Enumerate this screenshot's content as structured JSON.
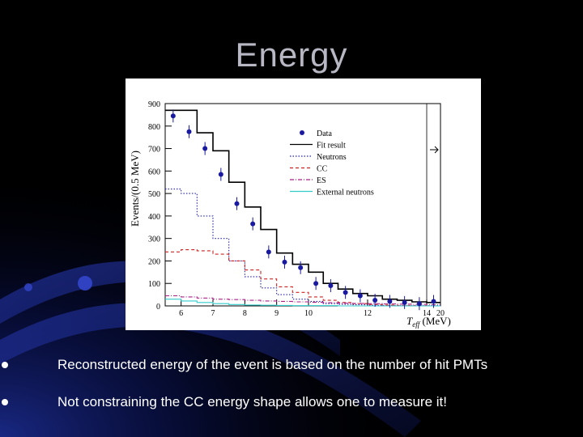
{
  "slide": {
    "title": "Energy",
    "bullets": [
      "Reconstructed energy of the event is based on the number of hit PMTs",
      "Not constraining the CC energy shape allows one to measure it!"
    ]
  },
  "chart_data": {
    "type": "line",
    "ylabel": "Events/(0.5 MeV)",
    "xlabel": "T_eff (MeV)",
    "xlim": [
      5.5,
      20
    ],
    "ylim": [
      0,
      900
    ],
    "x_ticks": [
      {
        "v": 6,
        "label": "6"
      },
      {
        "v": 7,
        "label": "7"
      },
      {
        "v": 8,
        "label": "8"
      },
      {
        "v": 9,
        "label": "9"
      },
      {
        "v": 10,
        "label": "10"
      },
      {
        "v": 12,
        "label": "12"
      },
      {
        "v": 14,
        "label": "14"
      },
      {
        "v": 20,
        "label": "20"
      }
    ],
    "y_ticks": [
      0,
      100,
      200,
      300,
      400,
      500,
      600,
      700,
      800,
      900
    ],
    "y_tick_labels": [
      "0",
      "100",
      "200",
      "300",
      "400",
      "500",
      "600",
      "700",
      "800",
      "900"
    ],
    "bin_edges": [
      5.5,
      6,
      6.5,
      7,
      7.5,
      8,
      8.5,
      9,
      9.5,
      10,
      10.5,
      11,
      11.5,
      12,
      12.5,
      13,
      13.5,
      14,
      20
    ],
    "data_points": {
      "name": "Data",
      "x": [
        5.75,
        6.25,
        6.75,
        7.25,
        7.75,
        8.25,
        8.75,
        9.25,
        9.75,
        10.25,
        10.75,
        11.25,
        11.75,
        12.25,
        12.75,
        13.25,
        13.75,
        17
      ],
      "y": [
        845,
        775,
        700,
        585,
        455,
        365,
        240,
        195,
        170,
        100,
        90,
        60,
        45,
        25,
        20,
        15,
        10,
        20
      ]
    },
    "series": [
      {
        "name": "Fit result",
        "color": "#000000",
        "style": "solid",
        "values": [
          870,
          870,
          770,
          690,
          550,
          440,
          340,
          235,
          185,
          150,
          100,
          75,
          55,
          45,
          30,
          25,
          18,
          15
        ]
      },
      {
        "name": "Neutrons",
        "color": "#2222aa",
        "style": "dotted",
        "values": [
          520,
          500,
          400,
          300,
          200,
          130,
          80,
          50,
          30,
          20,
          10,
          7,
          5,
          3,
          2,
          1,
          1,
          1
        ]
      },
      {
        "name": "CC",
        "color": "#cc2222",
        "style": "dashed",
        "values": [
          240,
          250,
          245,
          230,
          200,
          160,
          120,
          85,
          60,
          40,
          25,
          15,
          10,
          6,
          4,
          2,
          1,
          0
        ]
      },
      {
        "name": "ES",
        "color": "#aa2288",
        "style": "dashdot",
        "values": [
          45,
          40,
          35,
          30,
          28,
          25,
          22,
          20,
          18,
          16,
          14,
          12,
          11,
          10,
          9,
          8,
          7,
          5
        ]
      },
      {
        "name": "External neutrons",
        "color": "#33cccc",
        "style": "solid",
        "values": [
          30,
          22,
          15,
          10,
          6,
          4,
          3,
          2,
          1,
          1,
          1,
          0,
          0,
          0,
          0,
          0,
          0,
          0
        ]
      }
    ],
    "legend_position": "top-right",
    "grid": false
  }
}
